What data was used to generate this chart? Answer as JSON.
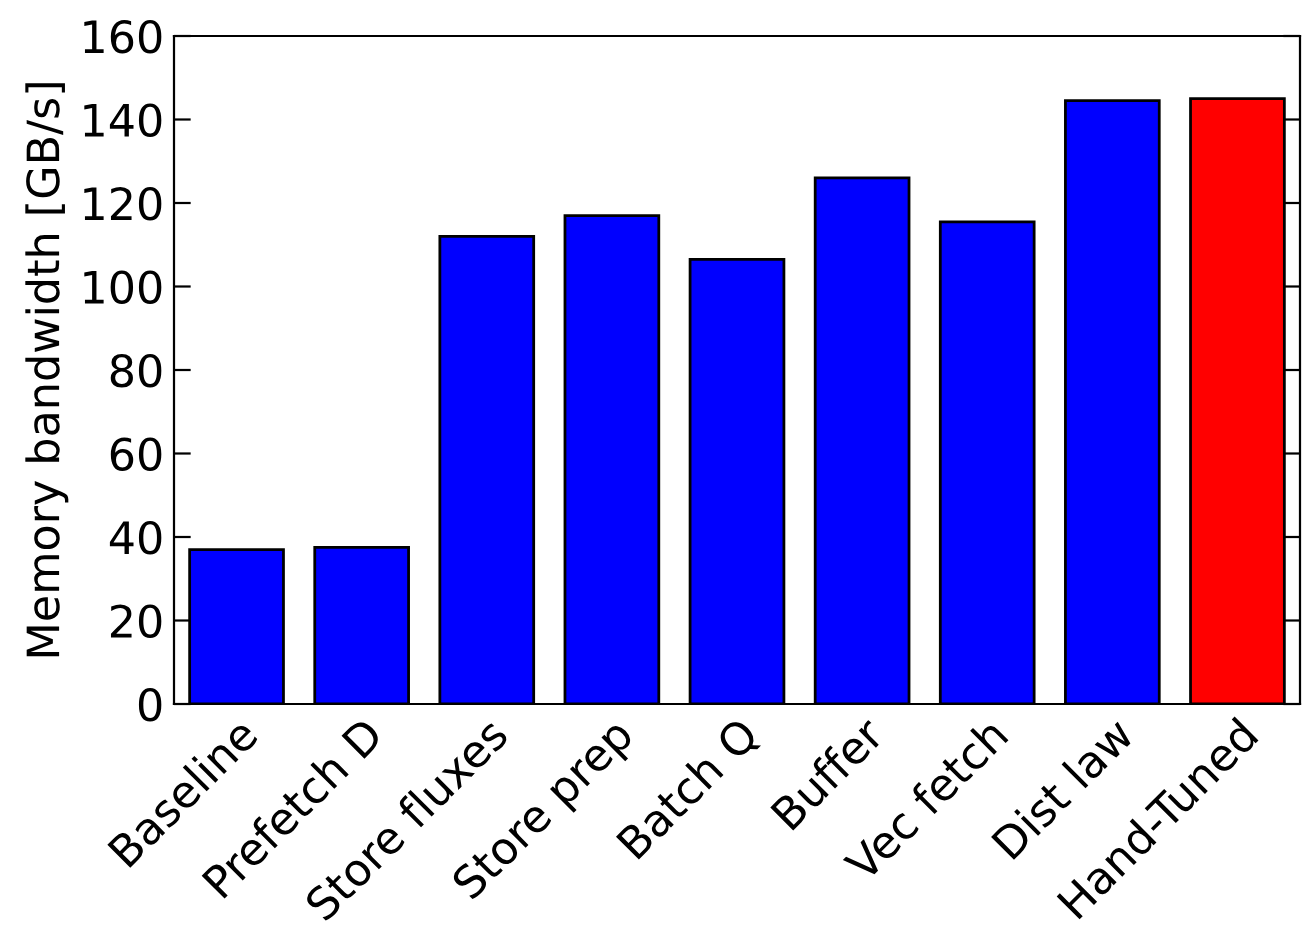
{
  "chart_data": {
    "type": "bar",
    "ylabel": "Memory bandwidth [GB/s]",
    "categories": [
      "Baseline",
      "Prefetch D",
      "Store fluxes",
      "Store prep",
      "Batch Q",
      "Buffer",
      "Vec fetch",
      "Dist law",
      "Hand-Tuned"
    ],
    "values": [
      37,
      37.5,
      112,
      117,
      106.5,
      126,
      115.5,
      144.5,
      145
    ],
    "colors": [
      "#0000ff",
      "#0000ff",
      "#0000ff",
      "#0000ff",
      "#0000ff",
      "#0000ff",
      "#0000ff",
      "#0000ff",
      "#ff0000"
    ],
    "ylim": [
      0,
      160
    ],
    "yticks": [
      0,
      20,
      40,
      60,
      80,
      100,
      120,
      140,
      160
    ],
    "grid": false,
    "legend": false
  }
}
